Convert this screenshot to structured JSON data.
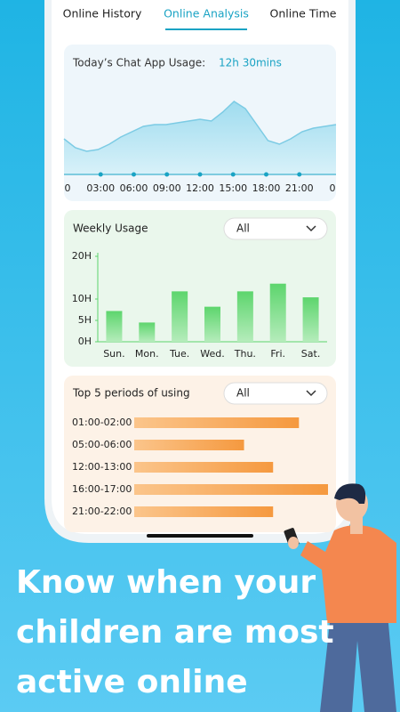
{
  "tabs": [
    "Online History",
    "Online Analysis",
    "Online Time"
  ],
  "usage": {
    "title": "Today’s Chat App Usage:",
    "total": "12h 30mins",
    "chart_data": {
      "type": "area",
      "color": "#8fd3ea",
      "values": [
        40,
        30,
        26,
        28,
        34,
        42,
        48,
        54,
        56,
        56,
        58,
        60,
        62,
        60,
        70,
        82,
        74,
        56,
        38,
        34,
        40,
        48,
        52,
        54,
        56
      ],
      "xlabels": [
        "0",
        "03:00",
        "06:00",
        "09:00",
        "12:00",
        "15:00",
        "18:00",
        "21:00",
        "0"
      ]
    }
  },
  "weekly": {
    "title": "Weekly Usage",
    "filter": "All",
    "chart_data": {
      "type": "bar",
      "color": "#5cd36c",
      "categories": [
        "Sun.",
        "Mon.",
        "Tue.",
        "Wed.",
        "Thu.",
        "Fri.",
        "Sat."
      ],
      "values": [
        7.2,
        4.5,
        11.8,
        8.2,
        11.8,
        13.6,
        10.4
      ],
      "ylim": [
        0,
        20
      ],
      "yticks": [
        {
          "value": 0,
          "label": "0H"
        },
        {
          "value": 5,
          "label": "5H"
        },
        {
          "value": 10,
          "label": "10H"
        },
        {
          "value": 20,
          "label": "20H"
        }
      ]
    }
  },
  "periods": {
    "title": "Top 5 periods of using",
    "filter": "All",
    "chart_data": {
      "type": "hbar",
      "color": "#f7a24e",
      "categories": [
        "01:00-02:00",
        "05:00-06:00",
        "12:00-13:00",
        "16:00-17:00",
        "21:00-22:00"
      ],
      "values": [
        51,
        34,
        43,
        60,
        43
      ]
    }
  },
  "headline": [
    "Know when your",
    "children are most",
    "active online"
  ]
}
